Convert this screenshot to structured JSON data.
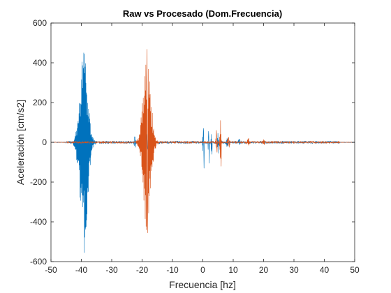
{
  "chart_data": {
    "type": "line",
    "title": "Raw vs Procesado (Dom.Frecuencia)",
    "xlabel": "Frecuencia [hz]",
    "ylabel": "Aceleración [cm/s2]",
    "xlim": [
      -50,
      50
    ],
    "ylim": [
      -600,
      600
    ],
    "xticks": [
      -50,
      -40,
      -30,
      -20,
      -10,
      0,
      10,
      20,
      30,
      40,
      50
    ],
    "yticks": [
      -600,
      -400,
      -200,
      0,
      200,
      400,
      600
    ],
    "grid": false,
    "legend": "none",
    "series": [
      {
        "color": "#0072BD",
        "bursts": [
          {
            "center": -39.2,
            "width": 2.3,
            "max": 450,
            "min": -555
          },
          {
            "center": -22.4,
            "width": 0.5,
            "max": 28,
            "min": -25
          },
          {
            "center": -18.4,
            "width": 1.2,
            "max": 40,
            "min": -35
          },
          {
            "center": 0.2,
            "width": 0.3,
            "max": 70,
            "min": -130
          },
          {
            "center": 1.9,
            "width": 0.2,
            "max": 55,
            "min": -105
          },
          {
            "center": 2.8,
            "width": 0.2,
            "max": 40,
            "min": -60
          },
          {
            "center": 5.0,
            "width": 0.3,
            "max": 45,
            "min": -55
          },
          {
            "center": 8.0,
            "width": 0.5,
            "max": 20,
            "min": -20
          },
          {
            "center": 12.0,
            "width": 0.5,
            "max": 15,
            "min": -12
          }
        ],
        "noise": 6
      },
      {
        "color": "#D95319",
        "bursts": [
          {
            "center": -18.4,
            "width": 2.2,
            "max": 468,
            "min": -455
          },
          {
            "center": 5.8,
            "width": 0.3,
            "max": 110,
            "min": -120
          },
          {
            "center": 4.5,
            "width": 0.4,
            "max": 60,
            "min": -50
          },
          {
            "center": 8.5,
            "width": 0.6,
            "max": 25,
            "min": -25
          },
          {
            "center": 15.0,
            "width": 0.6,
            "max": 18,
            "min": -15
          },
          {
            "center": 20.0,
            "width": 0.5,
            "max": 14,
            "min": -12
          }
        ],
        "noise": 5
      }
    ]
  }
}
